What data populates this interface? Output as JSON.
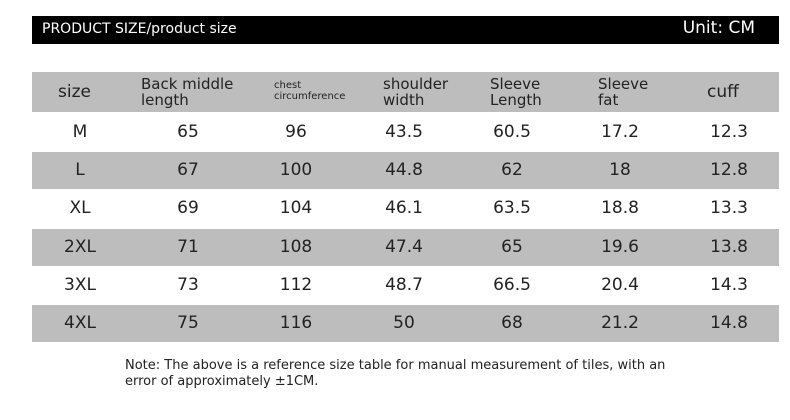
{
  "header": {
    "title": "PRODUCT SIZE/product size",
    "unit": "Unit: CM"
  },
  "table": {
    "columns": [
      "size",
      "Back middle length",
      "chest circumference",
      "shoulder width",
      "Sleeve Length",
      "Sleeve fat",
      "cuff"
    ],
    "rows": [
      [
        "M",
        "65",
        "96",
        "43.5",
        "60.5",
        "17.2",
        "12.3"
      ],
      [
        "L",
        "67",
        "100",
        "44.8",
        "62",
        "18",
        "12.8"
      ],
      [
        "XL",
        "69",
        "104",
        "46.1",
        "63.5",
        "18.8",
        "13.3"
      ],
      [
        "2XL",
        "71",
        "108",
        "47.4",
        "65",
        "19.6",
        "13.8"
      ],
      [
        "3XL",
        "73",
        "112",
        "48.7",
        "66.5",
        "20.4",
        "14.3"
      ],
      [
        "4XL",
        "75",
        "116",
        "50",
        "68",
        "21.2",
        "14.8"
      ]
    ]
  },
  "note": "Note: The above is a reference size table for manual measurement of tiles, with an error of approximately ±1CM."
}
